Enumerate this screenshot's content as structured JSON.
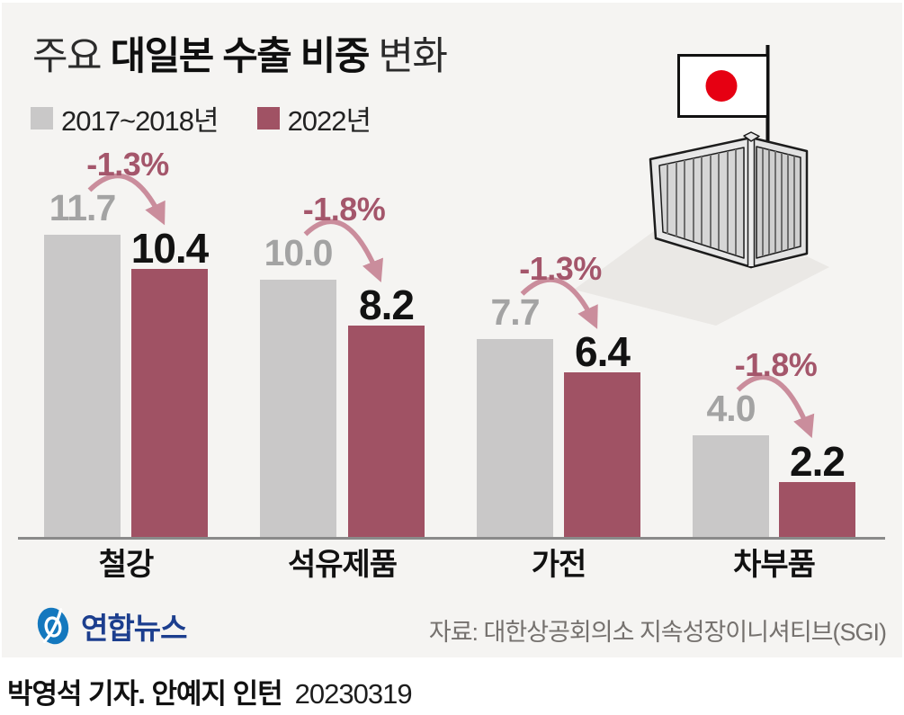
{
  "title": {
    "prefix": "주요 ",
    "emphasis": "대일본 수출 비중",
    "suffix": " 변화"
  },
  "legend": [
    {
      "label": "2017~2018년",
      "color": "#c9c8c8"
    },
    {
      "label": "2022년",
      "color": "#a05264"
    }
  ],
  "chart_data": {
    "type": "bar",
    "title": "주요 대일본 수출 비중 변화",
    "unit": "%",
    "categories": [
      "철강",
      "석유제품",
      "가전",
      "차부품"
    ],
    "series": [
      {
        "name": "2017~2018년",
        "color": "#c9c8c8",
        "values": [
          11.7,
          10.0,
          7.7,
          4.0
        ]
      },
      {
        "name": "2022년",
        "color": "#a05264",
        "values": [
          10.4,
          8.2,
          6.4,
          2.2
        ]
      }
    ],
    "change_labels": [
      "-1.3%",
      "-1.8%",
      "-1.3%",
      "-1.8%"
    ],
    "change_label_color": "#a4566b",
    "arrow_color": "#ca8d9c",
    "value_label_colors": {
      "prev": "#a3a3a3",
      "current": "#121212"
    },
    "ylim": [
      0,
      12
    ],
    "grid": false,
    "legend_position": "top-left",
    "axis_line_color": "#8a8a8a"
  },
  "illustration": {
    "name": "japan-flag-on-shipping-container",
    "flag_circle_color": "#e60012"
  },
  "footer": {
    "logo_text": "연합뉴스",
    "source": "자료: 대한상공회의소 지속성장이니셔티브(SGI)",
    "byline": "박영석 기자. 안예지 인턴",
    "date": "20230319"
  },
  "colors": {
    "card_background": "#f5f4f2",
    "page_background": "#ffffff",
    "logo_blue": "#1478be",
    "logo_text_navy": "#1c3e8e"
  }
}
